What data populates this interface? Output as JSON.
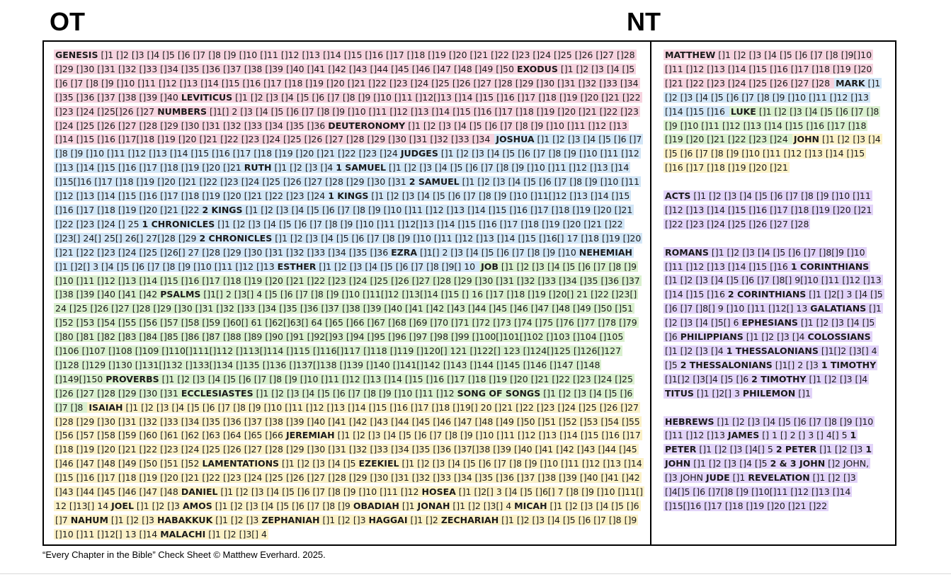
{
  "headers": {
    "ot": "OT",
    "nt": "NT"
  },
  "colors": {
    "pink": "#f6d3df",
    "blue": "#d2e6f7",
    "green": "#daf0cf",
    "yellow": "#fbf1c7",
    "purple": "#e2d3f9"
  },
  "ot_segments": [
    {
      "color": "pink",
      "items": [
        {
          "book": "GENESIS",
          "text": "[]1 []2 []3 []4 []5 []6 []7 []8 []9 []10 []11 []12 []13 []14 []15 []16 []17 []18 []19 []20 []21 []22 []23 []24 []25 []26 []27 []28 []29 []30 []31 []32 []33 []34 []35 []36 []37 []38 []39 []40 []41 []42 []43 []44 []45 []46 []47 []48 []49 []50"
        },
        {
          "book": "EXODUS",
          "text": "[]1 []2 []3 []4 []5 []6 []7 []8 []9 []10 []11 []12 []13 []14 []15 []16 []17 []18 []19 []20 []21 []22 []23 []24 []25 []26 []27 []28 []29 []30 []31 []32 []33 []34 []35 []36 []37 []38 []39 []40"
        },
        {
          "book": "LEVITICUS",
          "text": "[]1 []2 []3 []4 []5 []6 []7 []8 []9 []10 []11 []12[]13 []14 []15 []16 []17 []18 []19 []20 []21 []22 []23 []24 []25[]26 []27"
        },
        {
          "book": "NUMBERS",
          "text": "[]1[] 2 []3 []4 []5 []6 []7 []8 []9 []10 []11 []12 []13 []14 []15 []16 []17 []18 []19 []20 []21 []22 []23 []24 []25 []26 []27 []28 []29 []30 []31 []32 []33 []34 []35 []36"
        },
        {
          "book": "DEUTERONOMY",
          "text": "[]1 []2 []3 []4 []5 []6 []7 []8 []9 []10 []11 []12 []13 []14 []15 []16 []17[]18 []19 []20 []21 []22 []23 []24 []25 []26 []27 []28 []29 []30 []31 []32 []33 []34"
        }
      ]
    },
    {
      "color": "blue",
      "items": [
        {
          "book": "JOSHUA",
          "text": "[]1 []2 []3 []4 []5 []6 []7 []8 []9 []10 []11 []12 []13 []14 []15 []16 []17 []18 []19 []20 []21 []22 []23 []24"
        },
        {
          "book": "JUDGES",
          "text": "[]1 []2 []3 []4 []5 []6 []7 []8 []9 []10 []11 []12 []13 []14 []15 []16 []17 []18 []19 []20 []21"
        },
        {
          "book": "RUTH",
          "text": "[]1 []2 []3 []4"
        },
        {
          "book": "1 SAMUEL",
          "text": "[]1 []2 []3 []4 []5 []6 []7 []8 []9 []10 []11 []12 []13 []14 []15[]16 []17 []18 []19 []20 []21 []22 []23 []24 []25 []26 []27 []28 []29 []30 []31"
        },
        {
          "book": "2 SAMUEL",
          "text": "[]1 []2 []3 []4 []5 []6 []7 []8 []9 []10 []11 []12 []13 []14 []15 []16 []17 []18 []19 []20 []21 []22 []23 []24"
        },
        {
          "book": "1 KINGS",
          "text": "[]1 []2 []3 []4 []5 []6 []7 []8 []9 []10 []11[]12 []13 []14 []15 []16 []17 []18 []19 []20 []21 []22"
        },
        {
          "book": "2 KINGS",
          "text": "[]1 []2 []3 []4 []5 []6 []7 []8 []9 []10 []11 []12 []13 []14 []15 []16 []17 []18 []19 []20 []21 []22 []23 []24 [] 25"
        },
        {
          "book": "1 CHRONICLES",
          "text": "[]1 []2 []3 []4 []5 []6 []7 []8 []9 []10 []11 []12[]13 []14 []15 []16 []17 []18 []19 []20 []21 []22 []23[] 24[] 25[] 26[] 27[]28 []29"
        },
        {
          "book": "2 CHRONICLES",
          "text": "[]1 []2 []3 []4 []5 []6 []7 []8 []9 []10 []11 []12 []13 []14 []15 []16[] 17 []18 []19 []20 []21 []22 []23 []24 []25 []26[] 27 []28 []29 []30 []31 []32 []33 []34 []35 []36"
        },
        {
          "book": "EZRA",
          "text": "[]1[] 2 []3 []4 []5 []6 []7 []8 []9 []10"
        },
        {
          "book": "NEHEMIAH",
          "text": "[]1 []2[] 3 []4 []5 []6 []7 []8 []9 []10 []11 []12 []13"
        },
        {
          "book": "ESTHER",
          "text": "[]1 []2 []3 []4 []5 []6 []7 []8 []9[] 10"
        }
      ]
    },
    {
      "color": "green",
      "items": [
        {
          "book": "JOB",
          "text": "[]1 []2 []3 []4 []5 []6 []7 []8 []9 []10 []11 []12 []13 []14 []15 []16 []17 []18 []19 []20 []21 []22 []23 []24 []25 []26 []27 []28 []29 []30 []31 []32 []33 []34 []35 []36 []37 []38 []39 []40 []41 []42"
        },
        {
          "book": "PSALMS",
          "text": "[]1[] 2 []3[] 4 []5 []6 []7 []8 []9 []10 []11[]12 []13[]14 []15 [] 16 []17 []18 []19 []20[] 21 []22 []23[] 24 []25 []26 []27 []28 []29 []30 []31 []32 []33 []34 []35 []36 []37 []38 []39 []40 []41 []42 []43 []44 []45 []46 []47 []48 []49 []50 []51 []52 []53 []54 []55 []56 []57 []58 []59 []60[] 61 []62[]63[] 64 []65 []66 []67 []68 []69 []70 []71 []72 []73 []74 []75 []76 []77 []78 []79 []80 []81 []82 []83 []84 []85 []86 []87 []88 []89 []90 []91 []92[]93 []94 []95 []96 []97 []98 []99 []100[]101[]102 []103 []104 []105 []106 []107 []108 []109 []110[]111[]112 []113[]114 []115 []116[]117 []118 []119 []120[] 121 []122[] 123 []124[]125 []126[]127 []128 []129 []130 []131[]132 []133[]134 []135 []136 []137[]138 []139 []140 []141[]142 []143 []144 []145 []146 []147 []148 []149[]150"
        },
        {
          "book": "PROVERBS",
          "text": "[]1 []2 []3 []4 []5 []6 []7 []8 []9 []10 []11 []12 []13 []14 []15 []16 []17 []18 []19 []20 []21 []22 []23 []24 []25 []26 []27 []28 []29 []30 []31"
        },
        {
          "book": "ECCLESIASTES",
          "text": "[]1 []2 []3 []4 []5 []6 []7 []8 []9 []10 []11 []12"
        },
        {
          "book": "SONG OF SONGS",
          "text": "[]1 []2 []3 []4 []5 []6 []7 []8"
        }
      ]
    },
    {
      "color": "yellow",
      "items": [
        {
          "book": "ISAIAH",
          "text": "[]1 []2 []3 []4 []5 []6 []7 []8 []9 []10 []11 []12 []13 []14 []15 []16 []17 []18 []19[] 20 []21 []22 []23 []24 []25 []26 []27 []28 []29 []30 []31 []32 []33 []34 []35 []36 []37 []38 []39 []40 []41 []42 []43 []44 []45 []46 []47 []48 []49 []50 []51 []52 []53 []54 []55 []56 []57 []58 []59 []60 []61 []62 []63 []64 []65 []66"
        },
        {
          "book": "JEREMIAH",
          "text": "[]1 []2 []3 []4 []5 []6 []7 []8 []9 []10 []11 []12 []13 []14 []15 []16 []17 []18 []19 []20 []21 []22 []23 []24 []25 []26 []27 []28 []29 []30 []31 []32 []33 []34 []35 []36 []37[]38 []39 []40 []41 []42 []43 []44 []45 []46 []47 []48 []49 []50 []51 []52"
        },
        {
          "book": "LAMENTATIONS",
          "text": "[]1 []2 []3 []4 []5"
        },
        {
          "book": "EZEKIEL",
          "text": "[]1 []2 []3 []4 []5 []6 []7 []8 []9 []10 []11 []12 []13 []14 []15 []16 []17 []18 []19 []20 []21 []22 []23 []24 []25 []26 []27 []28 []29 []30 []31 []32 []33 []34 []35 []36 []37 []38 []39 []40 []41 []42 []43 []44 []45 []46 []47 []48"
        },
        {
          "book": "DANIEL",
          "text": "[]1 []2 []3 []4 []5 []6 []7 []8 []9 []10 []11 []12"
        },
        {
          "book": "HOSEA",
          "text": "[]1 []2[] 3 []4 []5 []6[] 7 []8 []9 []10 []11[] 12 []13[] 14"
        },
        {
          "book": "JOEL",
          "text": "[]1 []2 []3"
        },
        {
          "book": "AMOS",
          "text": "[]1 []2 []3 []4 []5 []6 []7 []8 []9"
        },
        {
          "book": "OBADIAH",
          "text": "[]1"
        },
        {
          "book": "JONAH",
          "text": "[]1 []2 []3[] 4"
        },
        {
          "book": "MICAH",
          "text": "[]1 []2 []3 []4 []5 []6 []7"
        },
        {
          "book": "NAHUM",
          "text": "[]1 []2 []3"
        },
        {
          "book": "HABAKKUK",
          "text": "[]1 []2 []3"
        },
        {
          "book": "ZEPHANIAH",
          "text": "[]1 []2 []3"
        },
        {
          "book": "HAGGAI",
          "text": "[]1 []2"
        },
        {
          "book": "ZECHARIAH",
          "text": "[]1 []2 []3 []4 []5 []6 []7 []8 []9 []10 []11 []12[] 13 []14"
        },
        {
          "book": "MALACHI",
          "text": "[]1 []2 []3[] 4"
        }
      ]
    }
  ],
  "nt_blocks": [
    {
      "segments": [
        {
          "color": "pink",
          "items": [
            {
              "book": "MATTHEW",
              "text": "[]1 []2 []3 []4 []5 []6 []7 []8 []9[]10 []11 []12 []13 []14 []15 []16 []17 []18 []19 []20 []21 []22 []23 []24 []25 []26 []27 []28"
            }
          ]
        },
        {
          "color": "blue",
          "items": [
            {
              "book": "MARK",
              "text": "[]1 []2 []3 []4 []5 []6 []7 []8 []9 []10 []11 []12 []13 []14 []15 []16"
            }
          ]
        },
        {
          "color": "green",
          "items": [
            {
              "book": "LUKE",
              "text": "[]1 []2 []3 []4 []5 []6 []7 []8 []9 []10 []11 []12 []13 []14 []15 []16 []17 []18 []19 []20 []21 []22 []23 []24"
            }
          ]
        },
        {
          "color": "yellow",
          "items": [
            {
              "book": "JOHN",
              "text": "[]1 []2 []3 []4 []5 []6 []7 []8 []9 []10 []11 []12 []13 []14 []15 []16 []17 []18 []19 []20 []21"
            }
          ]
        }
      ]
    },
    {
      "segments": [
        {
          "color": "purple",
          "items": [
            {
              "book": "ACTS",
              "text": "[]1 []2 []3 []4 []5 []6 []7 []8 []9 []10 []11 []12 []13 []14 []15 []16 []17 []18 []19 []20 []21 []22 []23 []24 []25 []26 []27 []28"
            }
          ]
        }
      ]
    },
    {
      "segments": [
        {
          "color": "purple",
          "items": [
            {
              "book": "ROMANS",
              "text": "[]1 []2 []3 []4 []5 []6 []7 []8[]9 []10 []11 []12 []13 []14 []15 []16"
            },
            {
              "book": "1 CORINTHIANS",
              "text": "[]1 []2 []3 []4 []5 []6 []7 []8[] 9[]10 []11 []12 []13 []14 []15 []16"
            },
            {
              "book": "2 CORINTHIANS",
              "text": "[]1 []2[] 3 []4 []5 []6 []7 []8[] 9 []10 []11 []12[] 13"
            },
            {
              "book": "GALATIANS",
              "text": "[]1 []2 []3 []4 []5[] 6"
            },
            {
              "book": "EPHESIANS",
              "text": "[]1 []2 []3 []4 []5 []6"
            },
            {
              "book": "PHILIPPIANS",
              "text": "[]1 []2 []3 []4"
            },
            {
              "book": "COLOSSIANS",
              "text": "[]1 []2 []3 []4"
            },
            {
              "book": "1 THESSALONIANS",
              "text": "[]1[]2 []3[] 4 []5"
            },
            {
              "book": "2 THESSALONIANS",
              "text": "[]1[] 2 []3"
            },
            {
              "book": "1 TIMOTHY",
              "text": "[]1[]2 []3[]4 []5 []6"
            },
            {
              "book": "2 TIMOTHY",
              "text": "[]1 []2 []3 []4"
            },
            {
              "book": "TITUS",
              "text": "[]1 []2[] 3"
            },
            {
              "book": "PHILEMON",
              "text": "[]1"
            }
          ]
        }
      ]
    },
    {
      "segments": [
        {
          "color": "purple",
          "items": [
            {
              "book": "HEBREWS",
              "text": "[]1 []2 []3 []4 []5 []6 []7 []8 []9 []10 []11 []12 []13"
            },
            {
              "book": "JAMES",
              "text": "[] 1 [] 2 [] 3 [] 4[] 5"
            },
            {
              "book": "1 PETER",
              "text": "[]1 []2 []3 []4[] 5"
            },
            {
              "book": "2 PETER",
              "text": "[]1 []2 []3"
            },
            {
              "book": "1 JOHN",
              "text": "[]1 []2 []3 []4 []5"
            },
            {
              "book": "2 & 3 JOHN",
              "text": "[]2 JOHN, []3 JOHN"
            },
            {
              "book": "JUDE",
              "text": "[]1"
            },
            {
              "book": "REVELATION",
              "text": "[]1 []2 []3 []4[]5 []6 []7[]8 []9 []10[]11 []12 []13 []14 []15[]16 []17 []18 []19 []20 []21 []22"
            }
          ]
        }
      ]
    }
  ],
  "footer": "“Every Chapter in the Bible” Check Sheet © Matthew Everhard. 2025."
}
